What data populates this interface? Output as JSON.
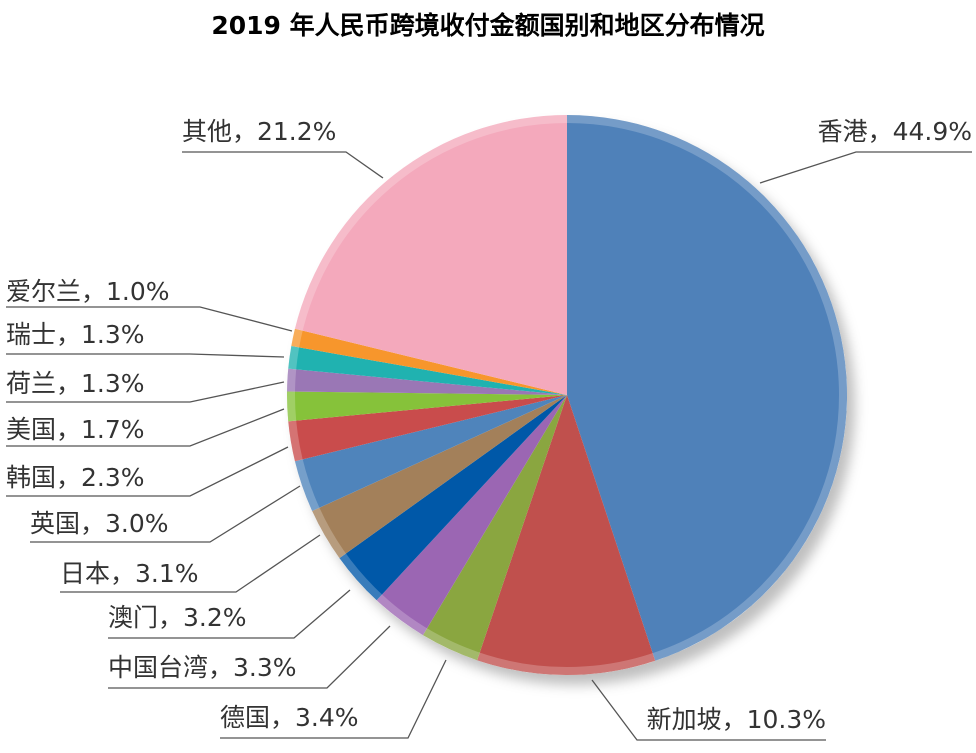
{
  "chart_data": {
    "type": "pie",
    "title": "2019 年人民币跨境收付金额国别和地区分布情况",
    "series": [
      {
        "name": "香港",
        "value": 44.9,
        "label": "香港，44.9%",
        "color": "#4f81b9"
      },
      {
        "name": "新加坡",
        "value": 10.3,
        "label": "新加坡，10.3%",
        "color": "#c0504d"
      },
      {
        "name": "德国",
        "value": 3.4,
        "label": "德国，3.4%",
        "color": "#8aa640"
      },
      {
        "name": "中国台湾",
        "value": 3.3,
        "label": "中国台湾，3.3%",
        "color": "#9b66b3"
      },
      {
        "name": "澳门",
        "value": 3.2,
        "label": "澳门，3.2%",
        "color": "#0058a8"
      },
      {
        "name": "日本",
        "value": 3.1,
        "label": "日本，3.1%",
        "color": "#a3805a"
      },
      {
        "name": "英国",
        "value": 3.0,
        "label": "英国，3.0%",
        "color": "#4f84bb"
      },
      {
        "name": "韩国",
        "value": 2.3,
        "label": "韩国，2.3%",
        "color": "#c94c4c"
      },
      {
        "name": "美国",
        "value": 1.7,
        "label": "美国，1.7%",
        "color": "#86c23a"
      },
      {
        "name": "荷兰",
        "value": 1.3,
        "label": "荷兰，1.3%",
        "color": "#9a77b5"
      },
      {
        "name": "瑞士",
        "value": 1.3,
        "label": "瑞士，1.3%",
        "color": "#20b2b0"
      },
      {
        "name": "爱尔兰",
        "value": 1.0,
        "label": "爱尔兰，1.0%",
        "color": "#f7962c"
      },
      {
        "name": "其他",
        "value": 21.2,
        "label": "其他，21.2%",
        "color": "#f4a9bc"
      }
    ]
  }
}
